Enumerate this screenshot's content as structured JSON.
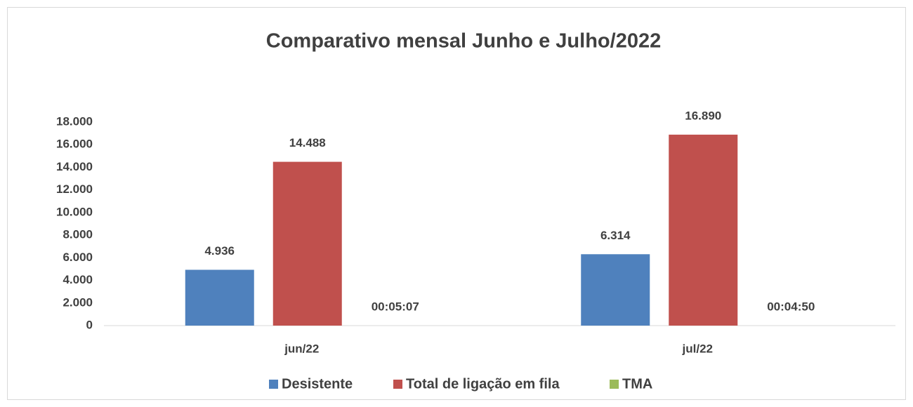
{
  "chart_data": {
    "type": "bar",
    "title": "Comparativo mensal Junho e Julho/2022",
    "categories": [
      "jun/22",
      "jul/22"
    ],
    "series": [
      {
        "name": "Desistente",
        "color": "#4f81bd",
        "values": [
          4936,
          6314
        ],
        "value_labels": [
          "4.936",
          "6.314"
        ]
      },
      {
        "name": "Total de ligação em fila",
        "color": "#c0504d",
        "values": [
          14488,
          16890
        ],
        "value_labels": [
          "14.488",
          "16.890"
        ]
      },
      {
        "name": "TMA",
        "color": "#9bbb59",
        "values": [
          0.003553240740740741,
          0.003356481481481481
        ],
        "value_labels": [
          "00:05:07",
          "00:04:50"
        ]
      }
    ],
    "ylim": [
      0,
      18000
    ],
    "yticks": [
      0,
      {
        "value": 2000,
        "label": "2.000"
      },
      {
        "value": 4000,
        "label": "4.000"
      },
      {
        "value": 6000,
        "label": "6.000"
      },
      {
        "value": 8000,
        "label": "8.000"
      },
      {
        "value": 10000,
        "label": "10.000"
      },
      {
        "value": 12000,
        "label": "12.000"
      },
      {
        "value": 14000,
        "label": "14.000"
      },
      {
        "value": 16000,
        "label": "16.000"
      },
      {
        "value": 18000,
        "label": "18.000"
      }
    ],
    "grid": false,
    "legend": "bottom"
  }
}
